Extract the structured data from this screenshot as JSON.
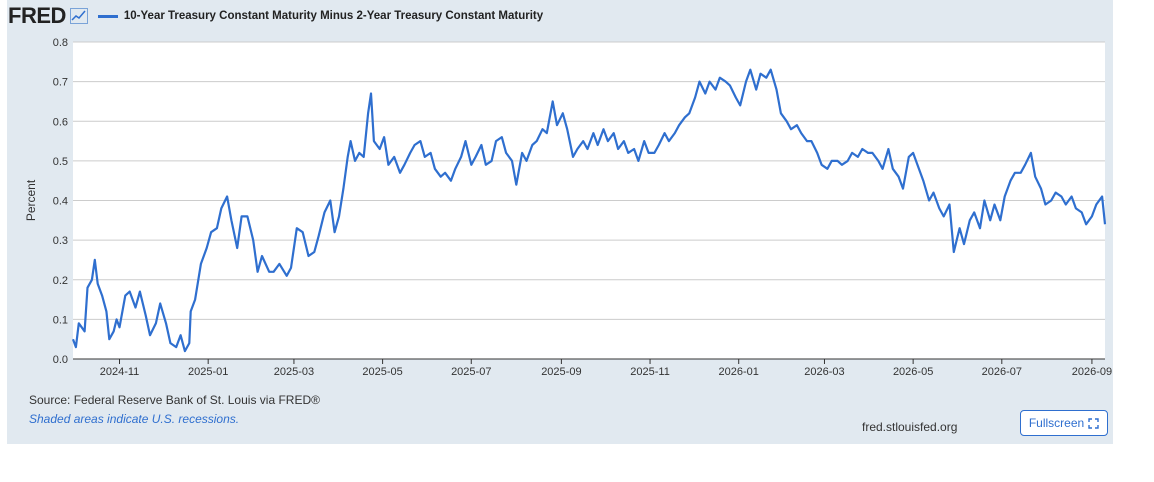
{
  "header": {
    "logo": "FRED",
    "logo_icon": "line-chart-icon",
    "series_label": "10-Year Treasury Constant Maturity Minus 2-Year Treasury Constant Maturity"
  },
  "footer": {
    "source": "Source: Federal Reserve Bank of St. Louis via FRED®",
    "recession_note": "Shaded areas indicate U.S. recessions.",
    "site": "fred.stlouisfed.org",
    "fullscreen_label": "Fullscreen",
    "fullscreen_icon": "expand-icon"
  },
  "colors": {
    "series": "#2f6fcf",
    "panel": "#e1e9f0",
    "grid": "#cccccc"
  },
  "chart_data": {
    "type": "line",
    "title": "",
    "xlabel": "",
    "ylabel": "Percent",
    "ylim": [
      0.0,
      0.8
    ],
    "yticks": [
      "0.0",
      "0.1",
      "0.2",
      "0.3",
      "0.4",
      "0.5",
      "0.6",
      "0.7",
      "0.8"
    ],
    "xticks": [
      {
        "label": "2024-11",
        "date": "2024-11-01"
      },
      {
        "label": "2025-01",
        "date": "2025-01-01"
      },
      {
        "label": "2025-03",
        "date": "2025-03-01"
      },
      {
        "label": "2025-05",
        "date": "2025-05-01"
      },
      {
        "label": "2025-07",
        "date": "2025-07-01"
      },
      {
        "label": "2025-09",
        "date": "2025-09-01"
      },
      {
        "label": "2025-11",
        "date": "2025-11-01"
      },
      {
        "label": "2026-01",
        "date": "2026-01-01"
      },
      {
        "label": "2026-03",
        "date": "2026-03-01"
      },
      {
        "label": "2026-05",
        "date": "2026-05-01"
      },
      {
        "label": "2026-07",
        "date": "2026-07-01"
      },
      {
        "label": "2026-09",
        "date": "2026-09-01"
      }
    ],
    "xrange": [
      "2024-09-30",
      "2026-09-10"
    ],
    "grid": true,
    "series": [
      {
        "name": "10-Year Treasury Constant Maturity Minus 2-Year Treasury Constant Maturity",
        "color": "#2f6fcf",
        "points": [
          [
            "2024-09-30",
            0.05
          ],
          [
            "2024-10-02",
            0.03
          ],
          [
            "2024-10-04",
            0.09
          ],
          [
            "2024-10-08",
            0.07
          ],
          [
            "2024-10-10",
            0.18
          ],
          [
            "2024-10-13",
            0.2
          ],
          [
            "2024-10-15",
            0.25
          ],
          [
            "2024-10-17",
            0.19
          ],
          [
            "2024-10-20",
            0.16
          ],
          [
            "2024-10-23",
            0.12
          ],
          [
            "2024-10-25",
            0.05
          ],
          [
            "2024-10-28",
            0.07
          ],
          [
            "2024-10-30",
            0.1
          ],
          [
            "2024-11-01",
            0.08
          ],
          [
            "2024-11-05",
            0.16
          ],
          [
            "2024-11-08",
            0.17
          ],
          [
            "2024-11-12",
            0.13
          ],
          [
            "2024-11-15",
            0.17
          ],
          [
            "2024-11-19",
            0.11
          ],
          [
            "2024-11-22",
            0.06
          ],
          [
            "2024-11-26",
            0.09
          ],
          [
            "2024-11-29",
            0.14
          ],
          [
            "2024-12-03",
            0.09
          ],
          [
            "2024-12-06",
            0.04
          ],
          [
            "2024-12-10",
            0.03
          ],
          [
            "2024-12-13",
            0.06
          ],
          [
            "2024-12-16",
            0.02
          ],
          [
            "2024-12-19",
            0.04
          ],
          [
            "2024-12-20",
            0.12
          ],
          [
            "2024-12-23",
            0.15
          ],
          [
            "2024-12-27",
            0.24
          ],
          [
            "2024-12-31",
            0.28
          ],
          [
            "2025-01-03",
            0.32
          ],
          [
            "2025-01-07",
            0.33
          ],
          [
            "2025-01-10",
            0.38
          ],
          [
            "2025-01-14",
            0.41
          ],
          [
            "2025-01-17",
            0.35
          ],
          [
            "2025-01-21",
            0.28
          ],
          [
            "2025-01-24",
            0.36
          ],
          [
            "2025-01-28",
            0.36
          ],
          [
            "2025-02-01",
            0.3
          ],
          [
            "2025-02-04",
            0.22
          ],
          [
            "2025-02-07",
            0.26
          ],
          [
            "2025-02-12",
            0.22
          ],
          [
            "2025-02-15",
            0.22
          ],
          [
            "2025-02-19",
            0.24
          ],
          [
            "2025-02-24",
            0.21
          ],
          [
            "2025-02-27",
            0.23
          ],
          [
            "2025-03-03",
            0.33
          ],
          [
            "2025-03-07",
            0.32
          ],
          [
            "2025-03-11",
            0.26
          ],
          [
            "2025-03-15",
            0.27
          ],
          [
            "2025-03-18",
            0.31
          ],
          [
            "2025-03-22",
            0.37
          ],
          [
            "2025-03-26",
            0.4
          ],
          [
            "2025-03-29",
            0.32
          ],
          [
            "2025-04-01",
            0.36
          ],
          [
            "2025-04-04",
            0.43
          ],
          [
            "2025-04-07",
            0.51
          ],
          [
            "2025-04-09",
            0.55
          ],
          [
            "2025-04-12",
            0.5
          ],
          [
            "2025-04-15",
            0.52
          ],
          [
            "2025-04-18",
            0.51
          ],
          [
            "2025-04-21",
            0.62
          ],
          [
            "2025-04-23",
            0.67
          ],
          [
            "2025-04-25",
            0.55
          ],
          [
            "2025-04-29",
            0.53
          ],
          [
            "2025-05-02",
            0.56
          ],
          [
            "2025-05-05",
            0.49
          ],
          [
            "2025-05-09",
            0.51
          ],
          [
            "2025-05-13",
            0.47
          ],
          [
            "2025-05-16",
            0.49
          ],
          [
            "2025-05-20",
            0.52
          ],
          [
            "2025-05-23",
            0.54
          ],
          [
            "2025-05-27",
            0.55
          ],
          [
            "2025-05-30",
            0.51
          ],
          [
            "2025-06-03",
            0.52
          ],
          [
            "2025-06-06",
            0.48
          ],
          [
            "2025-06-10",
            0.46
          ],
          [
            "2025-06-13",
            0.47
          ],
          [
            "2025-06-17",
            0.45
          ],
          [
            "2025-06-20",
            0.48
          ],
          [
            "2025-06-24",
            0.51
          ],
          [
            "2025-06-27",
            0.55
          ],
          [
            "2025-07-01",
            0.49
          ],
          [
            "2025-07-04",
            0.51
          ],
          [
            "2025-07-08",
            0.54
          ],
          [
            "2025-07-11",
            0.49
          ],
          [
            "2025-07-15",
            0.5
          ],
          [
            "2025-07-18",
            0.55
          ],
          [
            "2025-07-22",
            0.56
          ],
          [
            "2025-07-25",
            0.52
          ],
          [
            "2025-07-29",
            0.5
          ],
          [
            "2025-08-01",
            0.44
          ],
          [
            "2025-08-05",
            0.52
          ],
          [
            "2025-08-08",
            0.5
          ],
          [
            "2025-08-12",
            0.54
          ],
          [
            "2025-08-15",
            0.55
          ],
          [
            "2025-08-19",
            0.58
          ],
          [
            "2025-08-22",
            0.57
          ],
          [
            "2025-08-26",
            0.65
          ],
          [
            "2025-08-29",
            0.59
          ],
          [
            "2025-09-02",
            0.62
          ],
          [
            "2025-09-05",
            0.58
          ],
          [
            "2025-09-09",
            0.51
          ],
          [
            "2025-09-12",
            0.53
          ],
          [
            "2025-09-16",
            0.55
          ],
          [
            "2025-09-19",
            0.53
          ],
          [
            "2025-09-23",
            0.57
          ],
          [
            "2025-09-26",
            0.54
          ],
          [
            "2025-09-30",
            0.58
          ],
          [
            "2025-10-03",
            0.55
          ],
          [
            "2025-10-07",
            0.57
          ],
          [
            "2025-10-10",
            0.53
          ],
          [
            "2025-10-14",
            0.55
          ],
          [
            "2025-10-17",
            0.52
          ],
          [
            "2025-10-21",
            0.53
          ],
          [
            "2025-10-24",
            0.5
          ],
          [
            "2025-10-28",
            0.55
          ],
          [
            "2025-10-31",
            0.52
          ],
          [
            "2025-11-04",
            0.52
          ],
          [
            "2025-11-07",
            0.54
          ],
          [
            "2025-11-11",
            0.57
          ],
          [
            "2025-11-14",
            0.55
          ],
          [
            "2025-11-18",
            0.57
          ],
          [
            "2025-11-21",
            0.59
          ],
          [
            "2025-11-25",
            0.61
          ],
          [
            "2025-11-28",
            0.62
          ],
          [
            "2025-12-02",
            0.66
          ],
          [
            "2025-12-05",
            0.7
          ],
          [
            "2025-12-09",
            0.67
          ],
          [
            "2025-12-12",
            0.7
          ],
          [
            "2025-12-16",
            0.68
          ],
          [
            "2025-12-19",
            0.71
          ],
          [
            "2025-12-23",
            0.7
          ],
          [
            "2025-12-26",
            0.69
          ],
          [
            "2025-12-30",
            0.66
          ],
          [
            "2026-01-02",
            0.64
          ],
          [
            "2026-01-06",
            0.7
          ],
          [
            "2026-01-09",
            0.73
          ],
          [
            "2026-01-13",
            0.68
          ],
          [
            "2026-01-16",
            0.72
          ],
          [
            "2026-01-20",
            0.71
          ],
          [
            "2026-01-23",
            0.73
          ],
          [
            "2026-01-27",
            0.68
          ],
          [
            "2026-01-30",
            0.62
          ],
          [
            "2026-02-03",
            0.6
          ],
          [
            "2026-02-06",
            0.58
          ],
          [
            "2026-02-10",
            0.59
          ],
          [
            "2026-02-13",
            0.57
          ],
          [
            "2026-02-17",
            0.55
          ],
          [
            "2026-02-20",
            0.55
          ],
          [
            "2026-02-24",
            0.52
          ],
          [
            "2026-02-27",
            0.49
          ],
          [
            "2026-03-03",
            0.48
          ],
          [
            "2026-03-06",
            0.5
          ],
          [
            "2026-03-10",
            0.5
          ],
          [
            "2026-03-13",
            0.49
          ],
          [
            "2026-03-17",
            0.5
          ],
          [
            "2026-03-20",
            0.52
          ],
          [
            "2026-03-24",
            0.51
          ],
          [
            "2026-03-27",
            0.53
          ],
          [
            "2026-03-31",
            0.52
          ],
          [
            "2026-04-03",
            0.52
          ],
          [
            "2026-04-07",
            0.5
          ],
          [
            "2026-04-10",
            0.48
          ],
          [
            "2026-04-14",
            0.53
          ],
          [
            "2026-04-17",
            0.48
          ],
          [
            "2026-04-21",
            0.46
          ],
          [
            "2026-04-24",
            0.43
          ],
          [
            "2026-04-28",
            0.51
          ],
          [
            "2026-05-01",
            0.52
          ],
          [
            "2026-05-05",
            0.48
          ],
          [
            "2026-05-08",
            0.45
          ],
          [
            "2026-05-12",
            0.4
          ],
          [
            "2026-05-15",
            0.42
          ],
          [
            "2026-05-19",
            0.38
          ],
          [
            "2026-05-22",
            0.36
          ],
          [
            "2026-05-26",
            0.39
          ],
          [
            "2026-05-29",
            0.27
          ],
          [
            "2026-06-02",
            0.33
          ],
          [
            "2026-06-05",
            0.29
          ],
          [
            "2026-06-09",
            0.35
          ],
          [
            "2026-06-12",
            0.37
          ],
          [
            "2026-06-16",
            0.33
          ],
          [
            "2026-06-19",
            0.4
          ],
          [
            "2026-06-23",
            0.35
          ],
          [
            "2026-06-26",
            0.39
          ],
          [
            "2026-06-30",
            0.35
          ],
          [
            "2026-07-03",
            0.41
          ],
          [
            "2026-07-07",
            0.45
          ],
          [
            "2026-07-10",
            0.47
          ],
          [
            "2026-07-14",
            0.47
          ],
          [
            "2026-07-17",
            0.49
          ],
          [
            "2026-07-21",
            0.52
          ],
          [
            "2026-07-24",
            0.46
          ],
          [
            "2026-07-28",
            0.43
          ],
          [
            "2026-07-31",
            0.39
          ],
          [
            "2026-08-04",
            0.4
          ],
          [
            "2026-08-07",
            0.42
          ],
          [
            "2026-08-11",
            0.41
          ],
          [
            "2026-08-14",
            0.39
          ],
          [
            "2026-08-18",
            0.41
          ],
          [
            "2026-08-21",
            0.38
          ],
          [
            "2026-08-25",
            0.37
          ],
          [
            "2026-08-28",
            0.34
          ],
          [
            "2026-09-01",
            0.36
          ],
          [
            "2026-09-04",
            0.39
          ],
          [
            "2026-09-08",
            0.41
          ],
          [
            "2026-09-10",
            0.34
          ]
        ]
      }
    ]
  }
}
